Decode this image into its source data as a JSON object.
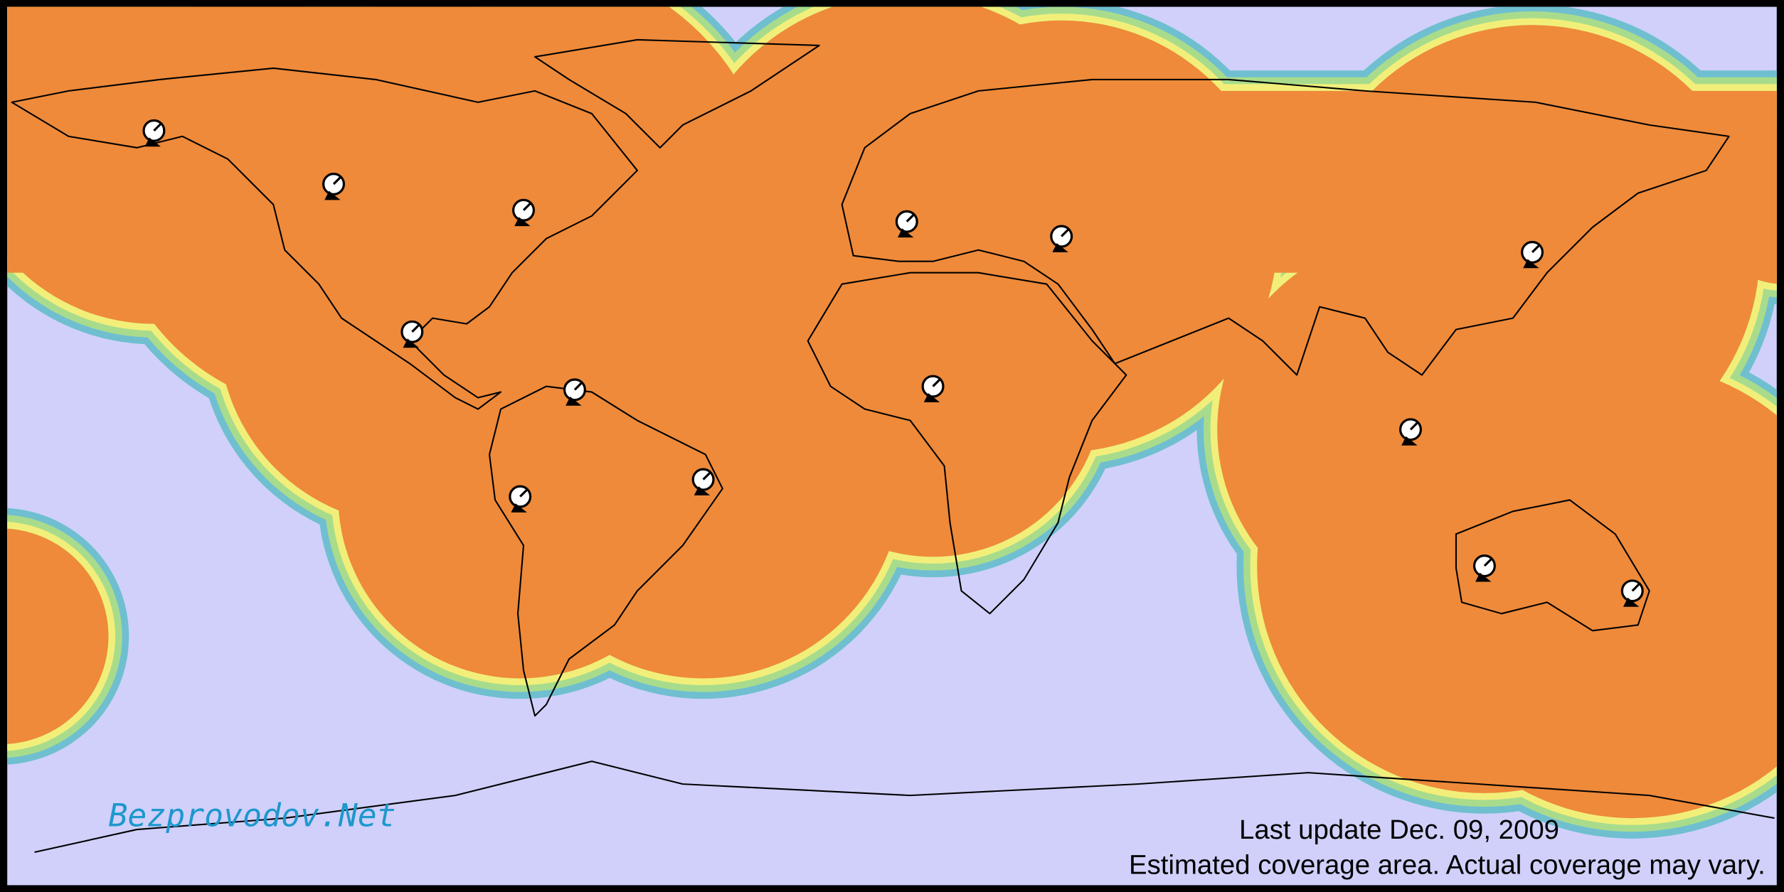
{
  "watermark": "Bezprovodov.Net",
  "footer": {
    "update": "Last update Dec. 09, 2009",
    "note": "Estimated coverage area.  Actual coverage may vary."
  }
}
